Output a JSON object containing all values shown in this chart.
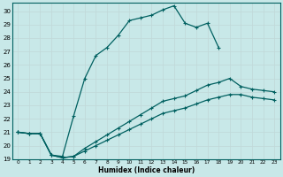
{
  "xlabel": "Humidex (Indice chaleur)",
  "bg_color": "#c8e8e8",
  "grid_color": "#b0d0d0",
  "line_color": "#006060",
  "xlim": [
    -0.5,
    23.5
  ],
  "ylim": [
    19,
    30.6
  ],
  "yticks": [
    19,
    20,
    21,
    22,
    23,
    24,
    25,
    26,
    27,
    28,
    29,
    30
  ],
  "xticks": [
    0,
    1,
    2,
    3,
    4,
    5,
    6,
    7,
    8,
    9,
    10,
    11,
    12,
    13,
    14,
    15,
    16,
    17,
    18,
    19,
    20,
    21,
    22,
    23
  ],
  "line1_x": [
    0,
    1,
    2,
    3,
    4,
    5,
    6,
    7,
    8,
    9,
    10,
    11,
    12,
    13,
    14,
    15,
    16,
    17,
    18
  ],
  "line1_y": [
    21.0,
    20.9,
    20.9,
    19.3,
    19.2,
    22.2,
    25.0,
    26.7,
    27.3,
    28.2,
    29.3,
    29.5,
    29.7,
    30.1,
    30.4,
    29.1,
    28.8,
    29.1,
    27.3
  ],
  "line2_x": [
    0,
    1,
    2,
    3,
    4,
    5,
    6,
    7,
    8,
    9,
    10,
    11,
    12,
    13,
    14,
    15,
    16,
    17,
    18,
    19,
    20,
    21,
    22,
    23
  ],
  "line2_y": [
    21.0,
    20.9,
    20.9,
    19.3,
    19.1,
    19.2,
    19.8,
    20.3,
    20.8,
    21.3,
    21.8,
    22.3,
    22.8,
    23.3,
    23.5,
    23.7,
    24.1,
    24.5,
    24.7,
    25.0,
    24.4,
    24.2,
    24.1,
    24.0
  ],
  "line3_x": [
    0,
    1,
    2,
    3,
    4,
    5,
    6,
    7,
    8,
    9,
    10,
    11,
    12,
    13,
    14,
    15,
    16,
    17,
    18,
    19,
    20,
    21,
    22,
    23
  ],
  "line3_y": [
    21.0,
    20.9,
    20.9,
    19.3,
    19.1,
    19.2,
    19.6,
    20.0,
    20.4,
    20.8,
    21.2,
    21.6,
    22.0,
    22.4,
    22.6,
    22.8,
    23.1,
    23.4,
    23.6,
    23.8,
    23.8,
    23.6,
    23.5,
    23.4
  ]
}
